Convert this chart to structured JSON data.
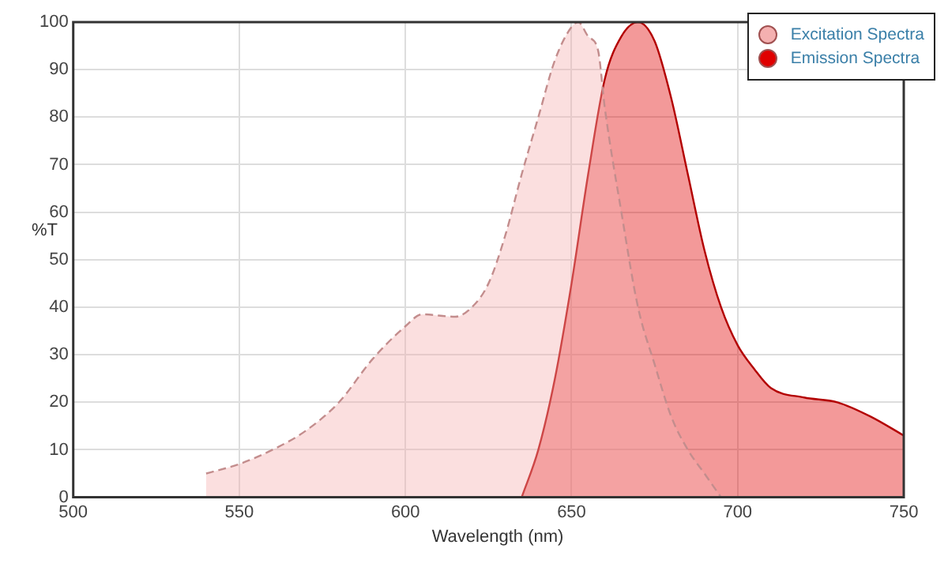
{
  "chart_data": {
    "type": "area",
    "xlabel": "Wavelength (nm)",
    "ylabel": "%T",
    "xlim": [
      500,
      750
    ],
    "xticks": [
      500,
      550,
      600,
      650,
      700,
      750
    ],
    "ylim": [
      0,
      100
    ],
    "yticks": [
      0,
      10,
      20,
      30,
      40,
      50,
      60,
      70,
      80,
      90,
      100
    ],
    "grid": true,
    "legend": "top right",
    "marker": "none",
    "series": [
      {
        "name": "Excitation Spectra",
        "color": "#f4b0b0",
        "line_style": "dashed",
        "x": [
          540,
          550,
          560,
          570,
          580,
          590,
          600,
          605,
          615,
          620,
          625,
          630,
          635,
          640,
          645,
          650,
          652,
          655,
          658,
          660,
          665,
          670,
          675,
          680,
          685,
          690,
          695
        ],
        "values": [
          5,
          7,
          10,
          14,
          20,
          29,
          36,
          38.5,
          38,
          40,
          45,
          55,
          68,
          80,
          92,
          99,
          100,
          97,
          94,
          82,
          60,
          40,
          28,
          17,
          10,
          5,
          0
        ]
      },
      {
        "name": "Emission Spectra",
        "color": "#e00000",
        "line_style": "solid",
        "x": [
          635,
          640,
          645,
          650,
          655,
          660,
          665,
          670,
          675,
          680,
          685,
          690,
          695,
          700,
          705,
          710,
          720,
          730,
          740,
          750
        ],
        "values": [
          0,
          10,
          25,
          45,
          68,
          88,
          97,
          100,
          96,
          84,
          68,
          52,
          40,
          32,
          27,
          23,
          21,
          20,
          17,
          13
        ]
      }
    ]
  }
}
